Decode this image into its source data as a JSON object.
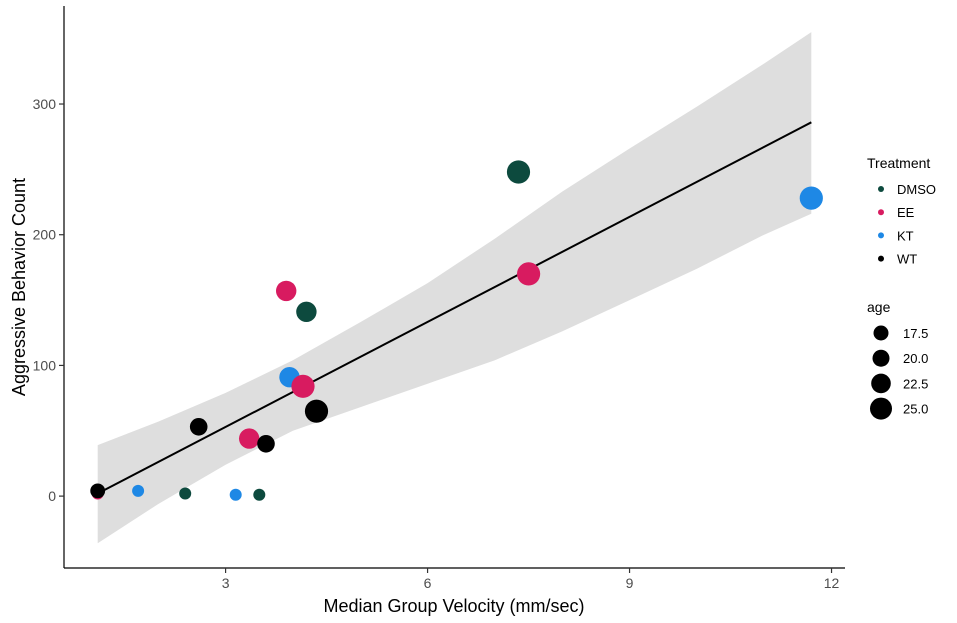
{
  "chart_data": {
    "type": "scatter",
    "xlabel": "Median Group Velocity (mm/sec)",
    "ylabel": "Aggressive Behavior Count",
    "xlim": [
      0.6,
      12.2
    ],
    "ylim": [
      -55,
      375
    ],
    "x_ticks": [
      3,
      6,
      9,
      12
    ],
    "y_ticks": [
      0,
      100,
      200,
      300
    ],
    "x_tick_labels": [
      "3",
      "6",
      "9",
      "12"
    ],
    "y_tick_labels": [
      "0",
      "100",
      "200",
      "300"
    ],
    "grid": false,
    "legend_placement": "right",
    "color_legend": {
      "title": "Treatment",
      "entries": [
        {
          "label": "DMSO",
          "color": "#0d4a3e"
        },
        {
          "label": "EE",
          "color": "#d81b60"
        },
        {
          "label": "KT",
          "color": "#1e88e5"
        },
        {
          "label": "WT",
          "color": "#000000"
        }
      ]
    },
    "size_legend": {
      "title": "age",
      "entries": [
        {
          "label": "17.5",
          "value": 17.5
        },
        {
          "label": "20.0",
          "value": 20.0
        },
        {
          "label": "22.5",
          "value": 22.5
        },
        {
          "label": "25.0",
          "value": 25.0
        }
      ]
    },
    "points": [
      {
        "treatment": "EE",
        "x": 1.1,
        "y": 2,
        "age": 15
      },
      {
        "treatment": "WT",
        "x": 1.1,
        "y": 4,
        "age": 17.5
      },
      {
        "treatment": "KT",
        "x": 1.7,
        "y": 4,
        "age": 15
      },
      {
        "treatment": "DMSO",
        "x": 2.4,
        "y": 2,
        "age": 15
      },
      {
        "treatment": "WT",
        "x": 2.6,
        "y": 53,
        "age": 20
      },
      {
        "treatment": "KT",
        "x": 3.15,
        "y": 1,
        "age": 15
      },
      {
        "treatment": "EE",
        "x": 3.35,
        "y": 44,
        "age": 22.5
      },
      {
        "treatment": "DMSO",
        "x": 3.5,
        "y": 1,
        "age": 15
      },
      {
        "treatment": "WT",
        "x": 3.6,
        "y": 40,
        "age": 20
      },
      {
        "treatment": "EE",
        "x": 3.9,
        "y": 157,
        "age": 22.5
      },
      {
        "treatment": "KT",
        "x": 3.95,
        "y": 91,
        "age": 22.5
      },
      {
        "treatment": "EE",
        "x": 4.15,
        "y": 84,
        "age": 25
      },
      {
        "treatment": "DMSO",
        "x": 4.2,
        "y": 141,
        "age": 22.5
      },
      {
        "treatment": "WT",
        "x": 4.35,
        "y": 65,
        "age": 25
      },
      {
        "treatment": "DMSO",
        "x": 7.35,
        "y": 248,
        "age": 25
      },
      {
        "treatment": "EE",
        "x": 7.5,
        "y": 170,
        "age": 25
      },
      {
        "treatment": "KT",
        "x": 11.7,
        "y": 228,
        "age": 25
      }
    ],
    "regression": {
      "x": [
        1.1,
        11.7
      ],
      "y": [
        2,
        286
      ]
    },
    "confidence_band": {
      "x": [
        1.1,
        2.0,
        3.0,
        4.0,
        5.0,
        6.0,
        7.0,
        8.0,
        9.0,
        10.0,
        11.0,
        11.7
      ],
      "lower": [
        -36,
        -6,
        24,
        50,
        68,
        86,
        104,
        126,
        150,
        174,
        200,
        216
      ],
      "upper": [
        39,
        57,
        79,
        104,
        133,
        163,
        197,
        233,
        266,
        298,
        331,
        355
      ]
    }
  }
}
